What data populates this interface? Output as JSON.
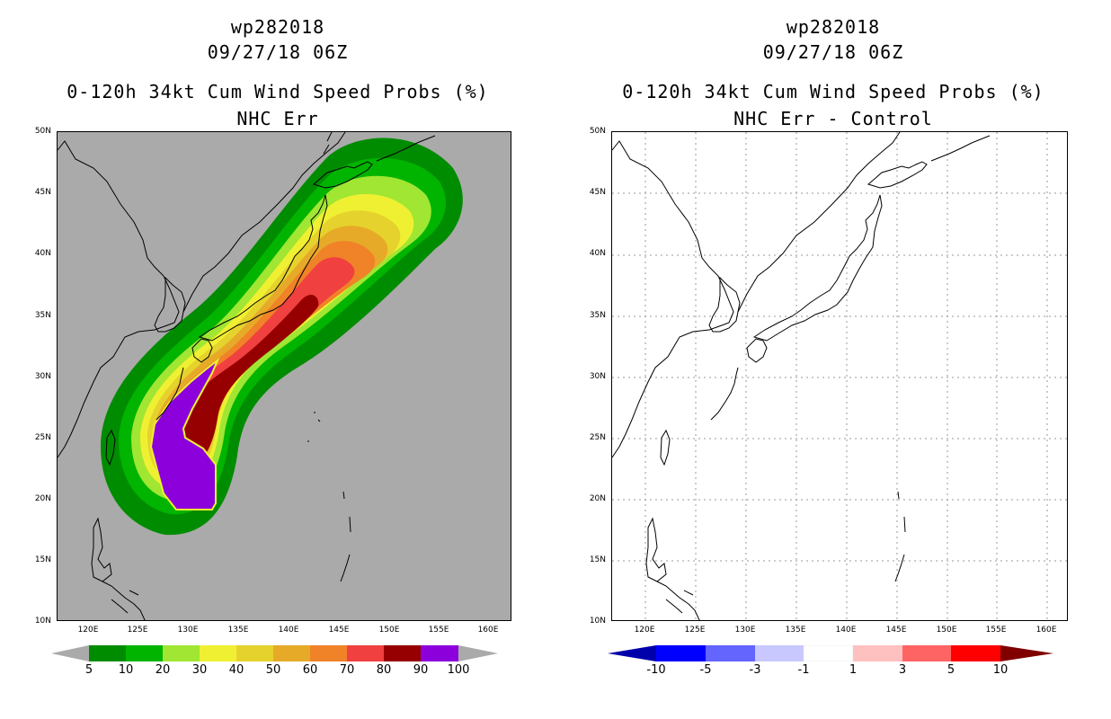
{
  "left": {
    "title1": "wp282018",
    "title2": "09/27/18 06Z",
    "title3": "0-120h 34kt Cum Wind Speed Probs (%)",
    "title4": "NHC Err",
    "background": "#aaaaaa",
    "colorbar": {
      "labels": [
        "5",
        "10",
        "20",
        "30",
        "40",
        "50",
        "60",
        "70",
        "80",
        "90",
        "100"
      ],
      "colors": [
        "#008c00",
        "#00b400",
        "#a0e632",
        "#f0f032",
        "#e6d22d",
        "#e6aa28",
        "#f08228",
        "#f04040",
        "#960000",
        "#8c00dc"
      ],
      "arrow_color": "#aaaaaa"
    }
  },
  "right": {
    "title1": "wp282018",
    "title2": "09/27/18 06Z",
    "title3": "0-120h 34kt Cum Wind Speed Probs (%)",
    "title4": "NHC Err - Control",
    "background": "#ffffff",
    "colorbar": {
      "labels": [
        "-10",
        "-5",
        "-3",
        "-1",
        "1",
        "3",
        "5",
        "10"
      ],
      "colors": [
        "#0000aa",
        "#0000ff",
        "#6464ff",
        "#c8c8ff",
        "#ffffff",
        "#ffc0c0",
        "#ff6464",
        "#ff0000",
        "#aa0000",
        "#800000"
      ]
    }
  },
  "axes": {
    "lat_labels": [
      "50N",
      "45N",
      "40N",
      "35N",
      "30N",
      "25N",
      "20N",
      "15N",
      "10N"
    ],
    "lon_labels": [
      "120E",
      "125E",
      "130E",
      "135E",
      "140E",
      "145E",
      "150E",
      "155E",
      "160E"
    ]
  }
}
